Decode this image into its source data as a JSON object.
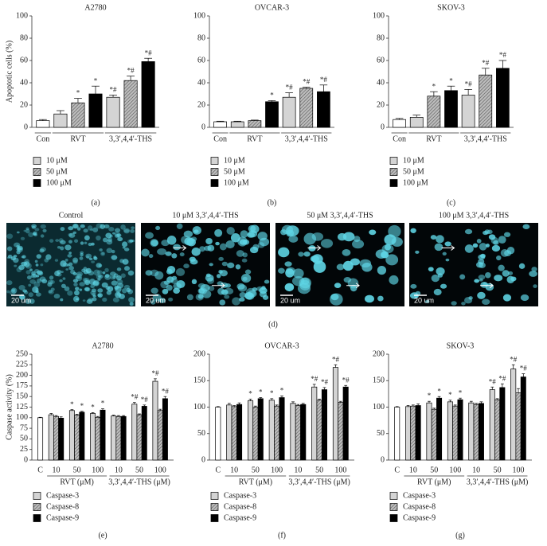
{
  "chart_data": [
    {
      "type": "bar",
      "title": "A2780",
      "ylabel": "Apoptotic cells (%)",
      "panel_label": "(a)",
      "ylim": [
        0,
        100
      ],
      "yticks": [
        0,
        20,
        40,
        60,
        80,
        100
      ],
      "control_color": "#ffffff",
      "series": [
        {
          "name": "10 μM",
          "color": "#d4d4d4"
        },
        {
          "name": "50 μM",
          "color": "#a0a0a0",
          "pattern": "hatch"
        },
        {
          "name": "100 μM",
          "color": "#000000"
        }
      ],
      "groups": [
        {
          "label": "Con",
          "values": [
            6
          ],
          "errors": [
            1
          ],
          "annotations": [
            null
          ]
        },
        {
          "label": "RVT",
          "values": [
            12,
            22,
            30
          ],
          "errors": [
            3,
            4,
            7
          ],
          "annotations": [
            null,
            "*",
            "*"
          ]
        },
        {
          "label": "3,3′,4,4′-THS",
          "values": [
            27,
            42,
            59
          ],
          "errors": [
            2,
            4,
            3
          ],
          "annotations": [
            "*#",
            "*#",
            "*#"
          ]
        }
      ]
    },
    {
      "type": "bar",
      "title": "OVCAR-3",
      "panel_label": "(b)",
      "ylim": [
        0,
        100
      ],
      "yticks": [
        0,
        20,
        40,
        60,
        80,
        100
      ],
      "control_color": "#ffffff",
      "series": [
        {
          "name": "10 μM",
          "color": "#d4d4d4"
        },
        {
          "name": "50 μM",
          "color": "#a0a0a0",
          "pattern": "hatch"
        },
        {
          "name": "100 μM",
          "color": "#000000"
        }
      ],
      "groups": [
        {
          "label": "Con",
          "values": [
            5
          ],
          "errors": [
            0.5
          ],
          "annotations": [
            null
          ]
        },
        {
          "label": "RVT",
          "values": [
            5,
            6,
            23
          ],
          "errors": [
            0.5,
            0.5,
            1
          ],
          "annotations": [
            null,
            null,
            "*"
          ]
        },
        {
          "label": "3,3′,4,4′-THS",
          "values": [
            27,
            35,
            32
          ],
          "errors": [
            4,
            1,
            6
          ],
          "annotations": [
            "*#",
            "*#",
            "*#"
          ]
        }
      ]
    },
    {
      "type": "bar",
      "title": "SKOV-3",
      "panel_label": "(c)",
      "ylim": [
        0,
        100
      ],
      "yticks": [
        0,
        20,
        40,
        60,
        80,
        100
      ],
      "control_color": "#ffffff",
      "series": [
        {
          "name": "10 μM",
          "color": "#d4d4d4"
        },
        {
          "name": "50 μM",
          "color": "#a0a0a0",
          "pattern": "hatch"
        },
        {
          "name": "100 μM",
          "color": "#000000"
        }
      ],
      "groups": [
        {
          "label": "Con",
          "values": [
            7
          ],
          "errors": [
            1
          ],
          "annotations": [
            null
          ]
        },
        {
          "label": "RVT",
          "values": [
            9,
            28,
            33
          ],
          "errors": [
            2,
            4,
            4
          ],
          "annotations": [
            null,
            "*",
            "*"
          ]
        },
        {
          "label": "3,3′,4,4′-THS",
          "values": [
            29,
            47,
            53
          ],
          "errors": [
            5,
            6,
            7
          ],
          "annotations": [
            "*#",
            "*#",
            "*#"
          ]
        }
      ]
    },
    {
      "type": "bar",
      "title": "A2780",
      "ylabel": "Caspase activity (%)",
      "panel_label": "(e)",
      "ylim": [
        0,
        250
      ],
      "yticks": [
        0,
        25,
        50,
        75,
        100,
        125,
        150,
        175,
        200,
        225,
        250
      ],
      "control_color": "#ffffff",
      "series": [
        {
          "name": "Caspase-3",
          "color": "#d4d4d4"
        },
        {
          "name": "Caspase-8",
          "color": "#a0a0a0",
          "pattern": "hatch"
        },
        {
          "name": "Caspase-9",
          "color": "#000000"
        }
      ],
      "groups": [
        {
          "clusters": [
            {
              "label": "C",
              "values": [
                100
              ],
              "errors": [
                1
              ],
              "annotations": [
                null
              ]
            }
          ]
        },
        {
          "label": "RVT (μM)",
          "clusters": [
            {
              "label": "10",
              "values": [
                107,
                103,
                99
              ],
              "errors": [
                3,
                2,
                3
              ],
              "annotations": [
                null,
                null,
                null
              ]
            },
            {
              "label": "50",
              "values": [
                117,
                106,
                113
              ],
              "errors": [
                2,
                2,
                2
              ],
              "annotations": [
                "*",
                null,
                "*"
              ]
            },
            {
              "label": "100",
              "values": [
                110,
                101,
                118
              ],
              "errors": [
                2,
                2,
                3
              ],
              "annotations": [
                "*",
                null,
                "*"
              ]
            }
          ]
        },
        {
          "label": "3,3′,4,4′-THS (μM)",
          "clusters": [
            {
              "label": "10",
              "values": [
                104,
                103,
                103
              ],
              "errors": [
                2,
                2,
                2
              ],
              "annotations": [
                null,
                null,
                null
              ]
            },
            {
              "label": "50",
              "values": [
                132,
                107,
                127
              ],
              "errors": [
                4,
                2,
                3
              ],
              "annotations": [
                "*#",
                null,
                "*#"
              ]
            },
            {
              "label": "100",
              "values": [
                186,
                117,
                145
              ],
              "errors": [
                6,
                3,
                5
              ],
              "annotations": [
                "*#",
                null,
                "*#"
              ]
            }
          ]
        }
      ]
    },
    {
      "type": "bar",
      "title": "OVCAR-3",
      "panel_label": "(f)",
      "ylim": [
        0,
        200
      ],
      "yticks": [
        0,
        50,
        100,
        150,
        200
      ],
      "control_color": "#ffffff",
      "series": [
        {
          "name": "Caspase-3",
          "color": "#d4d4d4"
        },
        {
          "name": "Caspase-8",
          "color": "#a0a0a0",
          "pattern": "hatch"
        },
        {
          "name": "Caspase-9",
          "color": "#000000"
        }
      ],
      "groups": [
        {
          "clusters": [
            {
              "label": "C",
              "values": [
                100
              ],
              "errors": [
                1
              ],
              "annotations": [
                null
              ]
            }
          ]
        },
        {
          "label": "RVT (μM)",
          "clusters": [
            {
              "label": "10",
              "values": [
                104,
                101,
                105
              ],
              "errors": [
                3,
                2,
                3
              ],
              "annotations": [
                null,
                null,
                null
              ]
            },
            {
              "label": "50",
              "values": [
                112,
                100,
                116
              ],
              "errors": [
                3,
                2,
                2
              ],
              "annotations": [
                "*",
                null,
                "*"
              ]
            },
            {
              "label": "100",
              "values": [
                113,
                102,
                118
              ],
              "errors": [
                3,
                2,
                3
              ],
              "annotations": [
                "*",
                null,
                "*"
              ]
            }
          ]
        },
        {
          "label": "3,3′,4,4′-THS (μM)",
          "clusters": [
            {
              "label": "10",
              "values": [
                107,
                103,
                105
              ],
              "errors": [
                3,
                2,
                2
              ],
              "annotations": [
                null,
                null,
                null
              ]
            },
            {
              "label": "50",
              "values": [
                138,
                113,
                133
              ],
              "errors": [
                5,
                2,
                4
              ],
              "annotations": [
                "*#",
                null,
                "*#"
              ]
            },
            {
              "label": "100",
              "values": [
                175,
                109,
                138
              ],
              "errors": [
                5,
                2,
                3
              ],
              "annotations": [
                "*#",
                null,
                "*#"
              ]
            }
          ]
        }
      ]
    },
    {
      "type": "bar",
      "title": "SKOV-3",
      "panel_label": "(g)",
      "ylim": [
        0,
        200
      ],
      "yticks": [
        0,
        50,
        100,
        150,
        200
      ],
      "control_color": "#ffffff",
      "series": [
        {
          "name": "Caspase-3",
          "color": "#d4d4d4"
        },
        {
          "name": "Caspase-8",
          "color": "#a0a0a0",
          "pattern": "hatch"
        },
        {
          "name": "Caspase-9",
          "color": "#000000"
        }
      ],
      "groups": [
        {
          "clusters": [
            {
              "label": "C",
              "values": [
                100
              ],
              "errors": [
                1
              ],
              "annotations": [
                null
              ]
            }
          ]
        },
        {
          "label": "RVT (μM)",
          "clusters": [
            {
              "label": "10",
              "values": [
                101,
                102,
                103
              ],
              "errors": [
                2,
                2,
                3
              ],
              "annotations": [
                null,
                null,
                null
              ]
            },
            {
              "label": "50",
              "values": [
                108,
                96,
                117
              ],
              "errors": [
                3,
                2,
                3
              ],
              "annotations": [
                "*",
                null,
                "*"
              ]
            },
            {
              "label": "100",
              "values": [
                110,
                102,
                114
              ],
              "errors": [
                3,
                2,
                3
              ],
              "annotations": [
                "*",
                null,
                "*"
              ]
            }
          ]
        },
        {
          "label": "3,3′,4,4′-THS (μM)",
          "clusters": [
            {
              "label": "10",
              "values": [
                108,
                105,
                107
              ],
              "errors": [
                3,
                2,
                3
              ],
              "annotations": [
                null,
                null,
                null
              ]
            },
            {
              "label": "50",
              "values": [
                133,
                114,
                137
              ],
              "errors": [
                5,
                2,
                7
              ],
              "annotations": [
                "*#",
                null,
                "*#"
              ]
            },
            {
              "label": "100",
              "values": [
                172,
                127,
                157
              ],
              "errors": [
                8,
                8,
                6
              ],
              "annotations": [
                "*#",
                null,
                "*#"
              ]
            }
          ]
        }
      ]
    }
  ],
  "image_panel": {
    "panel_label": "(d)",
    "images": [
      {
        "title": "Control",
        "scale_bar": "20 um"
      },
      {
        "title": "10 μM 3,3′,4,4′-THS",
        "scale_bar": "20 um"
      },
      {
        "title": "50 μM 3,3′,4,4′-THS",
        "scale_bar": "20 um"
      },
      {
        "title": "100 μM 3,3′,4,4′-THS",
        "scale_bar": "20 um"
      }
    ]
  }
}
